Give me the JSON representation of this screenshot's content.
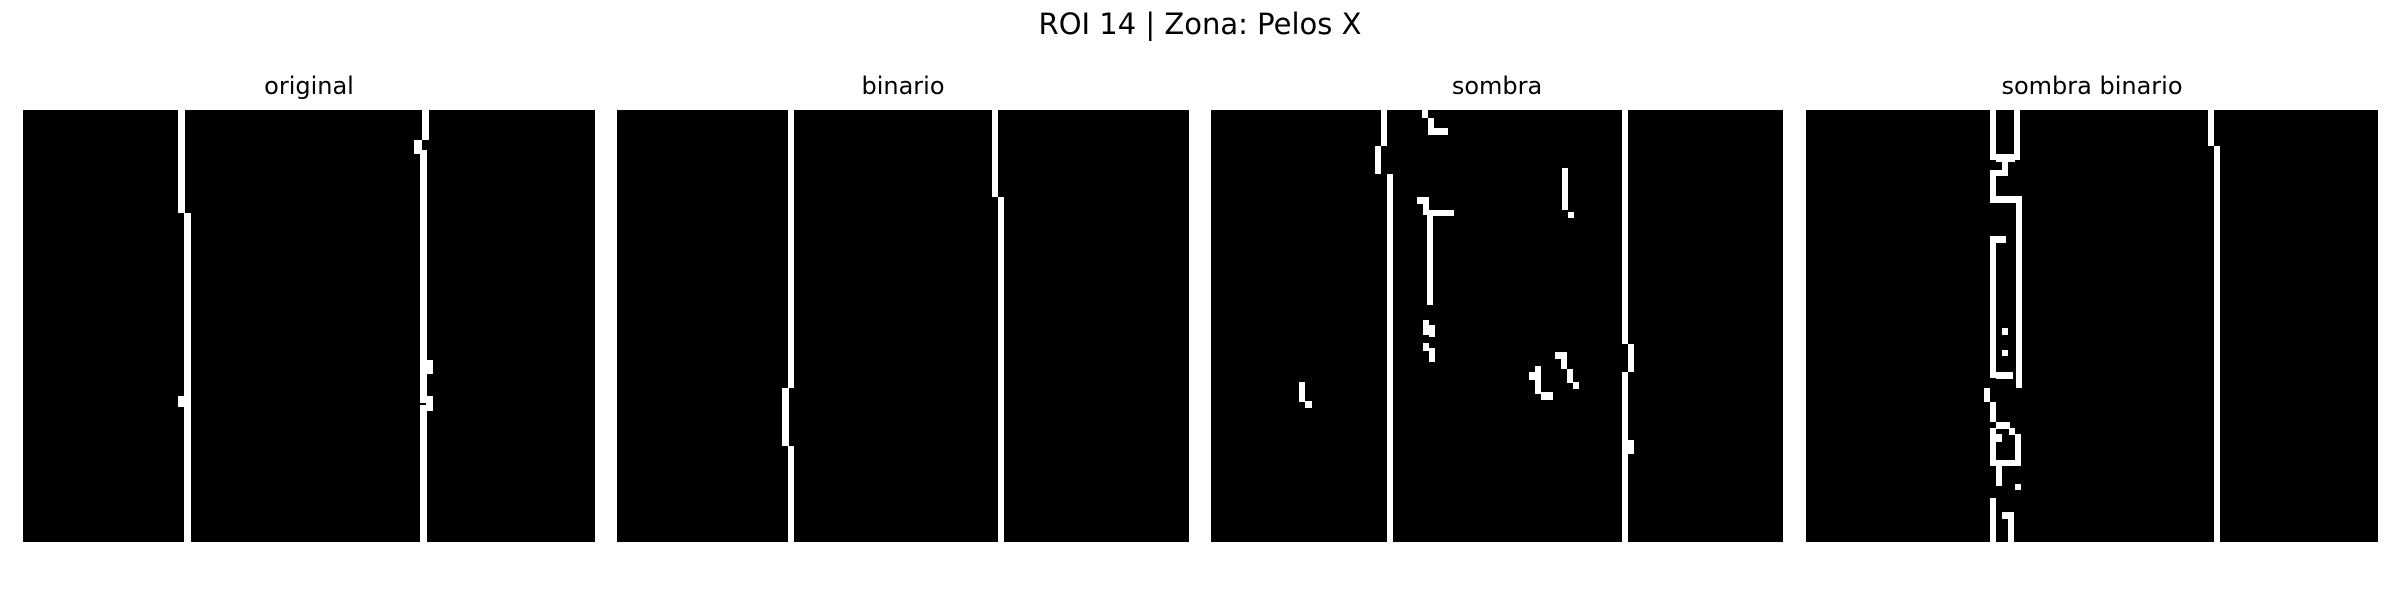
{
  "figure": {
    "suptitle": "ROI 14 | Zona:  Pelos X"
  },
  "panels": [
    {
      "id": "original",
      "title": "original"
    },
    {
      "id": "binario",
      "title": "binario"
    },
    {
      "id": "sombra",
      "title": "sombra"
    },
    {
      "id": "sombra_binario",
      "title": "sombra binario"
    }
  ],
  "colors": {
    "background": "#000000",
    "foreground": "#ffffff"
  }
}
